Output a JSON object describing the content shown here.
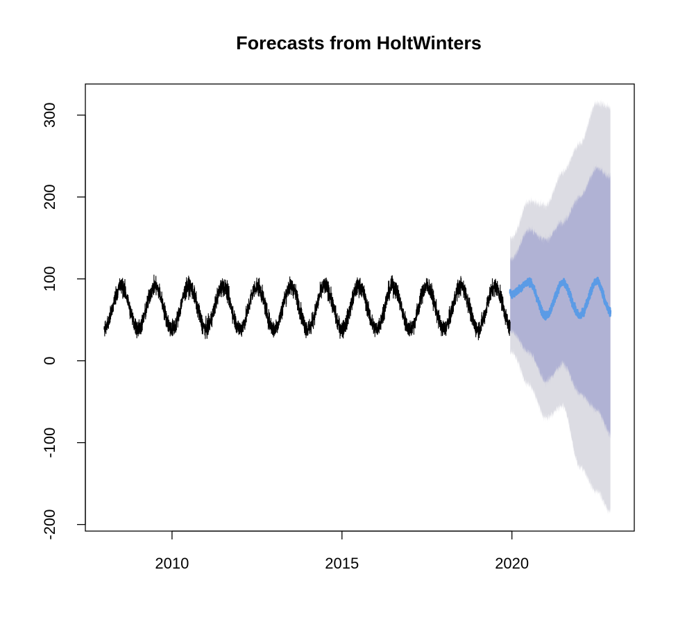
{
  "chart_data": {
    "type": "line",
    "title": "Forecasts from HoltWinters",
    "xlabel": "",
    "ylabel": "",
    "xlim": [
      2007.45,
      2023.6
    ],
    "ylim": [
      -208,
      338
    ],
    "x_ticks": [
      2010,
      2015,
      2020
    ],
    "y_ticks": [
      -200,
      -100,
      0,
      100,
      200,
      300
    ],
    "grid": false,
    "observed": {
      "x_start": 2008.0,
      "x_end": 2019.95,
      "frequency": 365,
      "level": 65,
      "seasonal_amplitude": 26,
      "seasonal_peak_fraction": 0.5,
      "noise_spread": 8,
      "color": "#000000"
    },
    "forecast": {
      "x_start": 2019.95,
      "x_end": 2022.9,
      "points": [
        {
          "x": 2020.0,
          "mean": 82,
          "lo80": 35,
          "hi80": 125,
          "lo95": 10,
          "hi95": 150
        },
        {
          "x": 2020.5,
          "mean": 96,
          "lo80": 10,
          "hi80": 160,
          "lo95": -30,
          "hi95": 195
        },
        {
          "x": 2021.0,
          "mean": 55,
          "lo80": -25,
          "hi80": 148,
          "lo95": -70,
          "hi95": 190
        },
        {
          "x": 2021.5,
          "mean": 95,
          "lo80": -5,
          "hi80": 170,
          "lo95": -55,
          "hi95": 230
        },
        {
          "x": 2022.0,
          "mean": 55,
          "lo80": -40,
          "hi80": 200,
          "lo95": -130,
          "hi95": 265
        },
        {
          "x": 2022.5,
          "mean": 97,
          "lo80": -60,
          "hi80": 235,
          "lo95": -160,
          "hi95": 315
        },
        {
          "x": 2022.9,
          "mean": 60,
          "lo80": -90,
          "hi80": 225,
          "lo95": -185,
          "hi95": 310
        }
      ],
      "line_color": "#5b9be6",
      "band80_color": "#b0b2d4",
      "band95_color": "#dcdce3"
    }
  }
}
